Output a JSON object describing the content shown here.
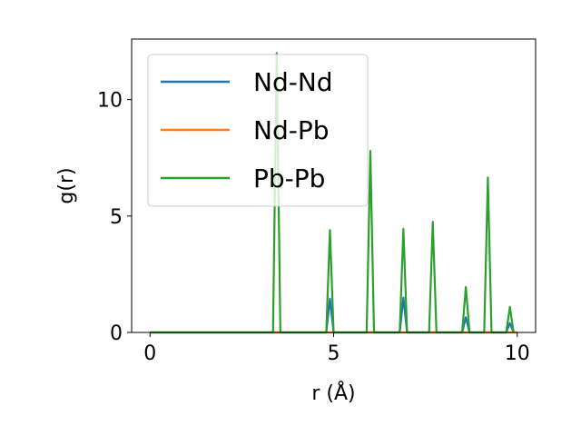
{
  "chart_data": {
    "type": "line",
    "title": "",
    "xlabel": "r (Å)",
    "ylabel": "g(r)",
    "xlim": [
      -0.5,
      10.5
    ],
    "ylim": [
      0,
      12.6
    ],
    "x_ticks": [
      0,
      5,
      10
    ],
    "y_ticks": [
      0,
      5,
      10
    ],
    "legend_position": "upper left",
    "grid": false,
    "series": [
      {
        "name": "Nd-Nd",
        "color": "#1f77b4",
        "x": [
          0,
          3.3,
          3.4,
          3.5,
          4.8,
          4.9,
          5.0,
          5.9,
          6.0,
          6.1,
          6.8,
          6.9,
          7.0,
          7.6,
          7.7,
          7.8,
          8.5,
          8.6,
          8.7,
          9.1,
          9.2,
          9.3,
          9.7,
          9.8,
          9.9
        ],
        "values": [
          0,
          0,
          0,
          0,
          0,
          1.45,
          0,
          0,
          0,
          0,
          0,
          1.5,
          0,
          0,
          0,
          0,
          0,
          0.65,
          0,
          0,
          0,
          0,
          0,
          0.4,
          0
        ]
      },
      {
        "name": "Nd-Pb",
        "color": "#ff7f0e",
        "x": [
          0,
          10
        ],
        "values": [
          0,
          0
        ]
      },
      {
        "name": "Pb-Pb",
        "color": "#2ca02c",
        "x": [
          0,
          3.35,
          3.45,
          3.55,
          4.8,
          4.9,
          5.0,
          5.9,
          6.0,
          6.1,
          6.8,
          6.9,
          7.0,
          7.6,
          7.7,
          7.8,
          8.5,
          8.6,
          8.7,
          9.1,
          9.2,
          9.3,
          9.7,
          9.8,
          9.9
        ],
        "values": [
          0,
          0,
          12.0,
          0,
          0,
          4.4,
          0,
          0,
          7.8,
          0,
          0,
          4.45,
          0,
          0,
          4.75,
          0,
          0,
          1.95,
          0,
          0,
          6.65,
          0,
          0,
          1.1,
          0
        ]
      }
    ]
  }
}
